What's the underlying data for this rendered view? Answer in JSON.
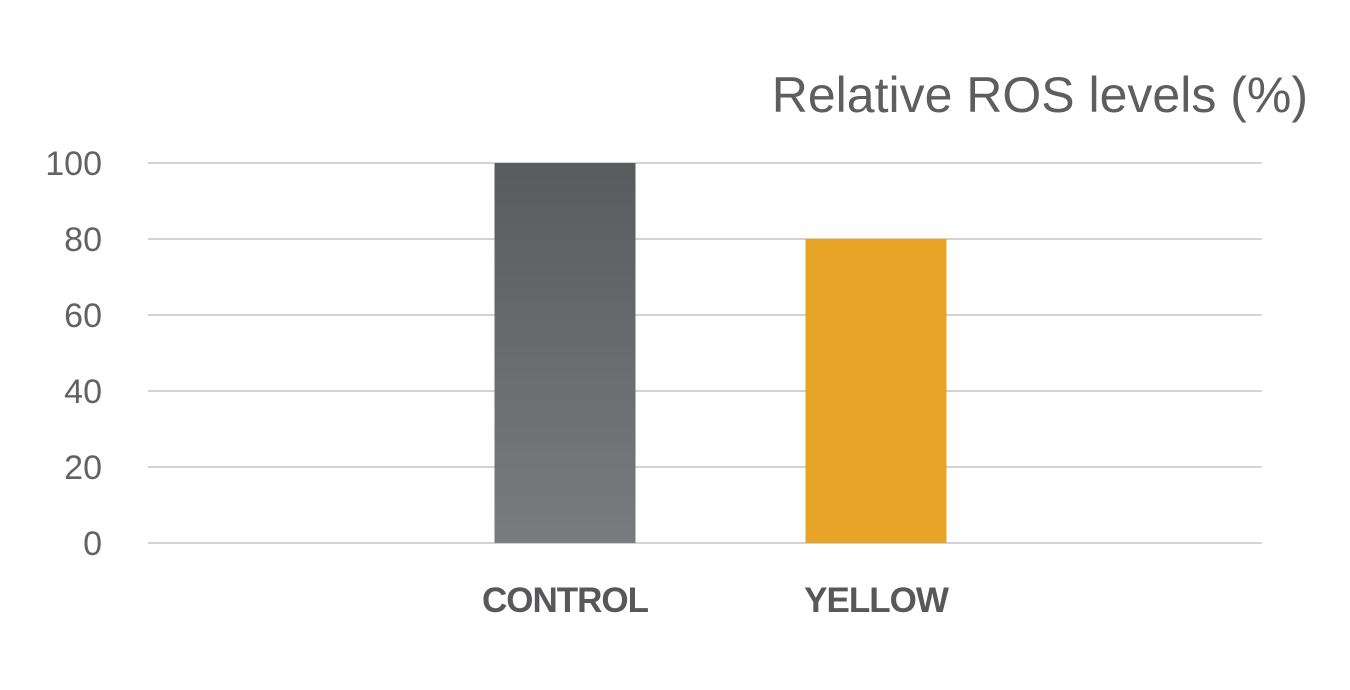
{
  "chart_data": {
    "type": "bar",
    "title": "Relative ROS levels (%)",
    "xlabel": "",
    "ylabel": "",
    "ylim": [
      0,
      100
    ],
    "yticks": [
      0,
      20,
      40,
      60,
      80,
      100
    ],
    "grid": true,
    "categories": [
      "CONTROL",
      "YELLOW"
    ],
    "values": [
      100,
      80
    ],
    "colors": {
      "CONTROL": [
        "#5a5b5e",
        "#7a7b7e"
      ],
      "YELLOW": [
        "#e8a427",
        "#e8a427"
      ]
    }
  }
}
